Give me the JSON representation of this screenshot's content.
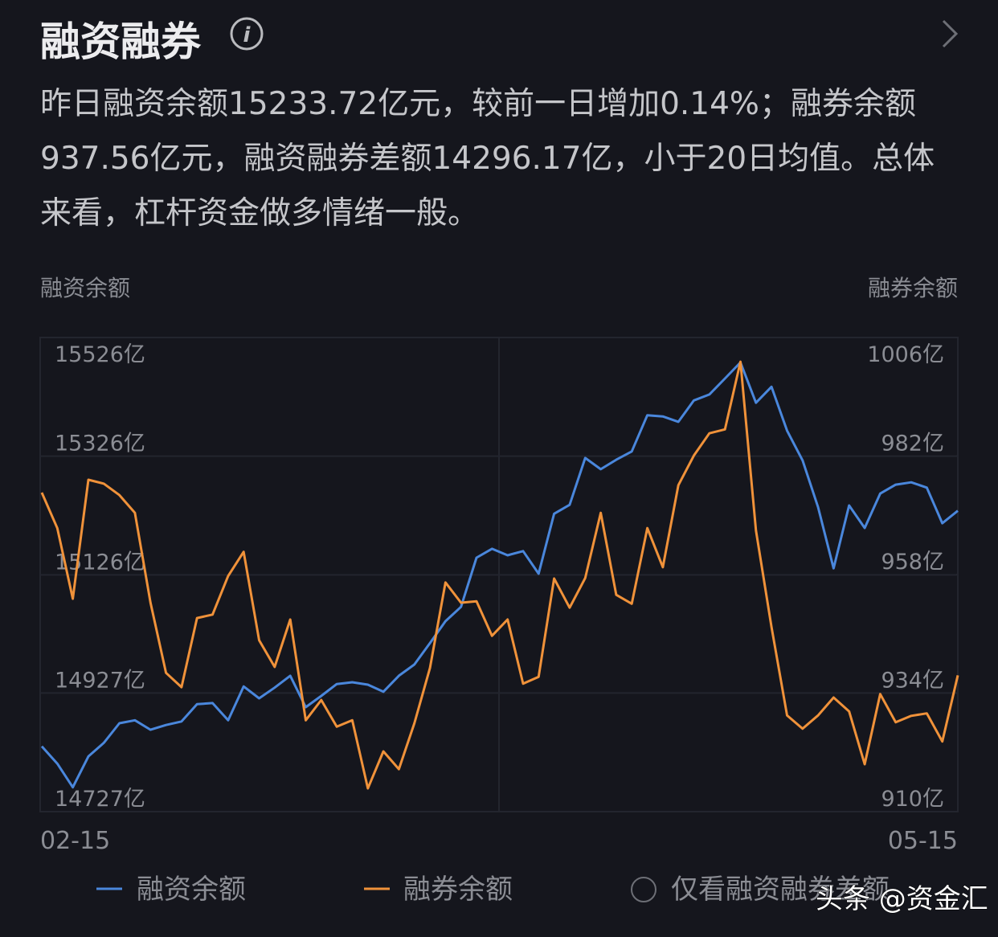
{
  "header": {
    "title": "融资融券"
  },
  "summary": "昨日融资余额15233.72亿元，较前一日增加0.14%；融券余额937.56亿元，融资融券差额14296.17亿，小于20日均值。总体来看，杠杆资金做多情绪一般。",
  "chart_data": {
    "type": "line",
    "y_label": "融资余额",
    "y2_label": "融券余额",
    "categories": [
      "02-15",
      null,
      null,
      null,
      null,
      null,
      null,
      null,
      null,
      null,
      null,
      null,
      null,
      null,
      null,
      null,
      null,
      null,
      null,
      null,
      null,
      null,
      null,
      null,
      null,
      null,
      null,
      null,
      null,
      null,
      null,
      null,
      null,
      null,
      null,
      null,
      null,
      null,
      null,
      null,
      null,
      null,
      null,
      null,
      null,
      null,
      null,
      null,
      null,
      null,
      null,
      null,
      null,
      null,
      null,
      null,
      null,
      null,
      null,
      "05-15"
    ],
    "series": [
      {
        "name": "融资余额",
        "color": "#4a87dc",
        "values": [
          14837,
          14808,
          14768,
          14820,
          14843,
          14876,
          14881,
          14865,
          14873,
          14879,
          14908,
          14910,
          14881,
          14938,
          14918,
          14936,
          14956,
          14903,
          14922,
          14942,
          14945,
          14941,
          14929,
          14956,
          14975,
          15011,
          15048,
          15072,
          15155,
          15170,
          15159,
          15166,
          15128,
          15229,
          15244,
          15323,
          15304,
          15320,
          15334,
          15395,
          15393,
          15384,
          15420,
          15430,
          15457,
          15484,
          15416,
          15443,
          15369,
          15319,
          15240,
          15137,
          15243,
          15205,
          15263,
          15278,
          15282,
          15273,
          15213,
          15234
        ]
      },
      {
        "name": "融券余额",
        "color": "#f0923a",
        "axis": "y2",
        "values": [
          974.6,
          967.4,
          953.1,
          977.2,
          976.4,
          974.1,
          970.5,
          952.3,
          938.1,
          935.2,
          949.2,
          949.9,
          957.7,
          962.6,
          944.7,
          939.3,
          948.9,
          928.5,
          932.6,
          927.2,
          928.5,
          914.7,
          922.2,
          918.6,
          927.9,
          939.1,
          956.4,
          952.3,
          952.6,
          945.6,
          948.9,
          935.9,
          937.3,
          957.2,
          951.3,
          957.3,
          970.5,
          953.9,
          952.1,
          967.4,
          959.5,
          976.1,
          982.1,
          986.6,
          987.4,
          1001.1,
          966.9,
          947.4,
          929.5,
          926.8,
          929.5,
          933.1,
          930.3,
          919.6,
          933.8,
          928.1,
          929.4,
          929.9,
          924.2,
          937.6
        ]
      }
    ],
    "ylim": [
      14727,
      15526
    ],
    "yticks": [
      {
        "value": 14727,
        "label": "14727亿"
      },
      {
        "value": 14927,
        "label": "14927亿"
      },
      {
        "value": 15126,
        "label": "15126亿"
      },
      {
        "value": 15326,
        "label": "15326亿"
      },
      {
        "value": 15526,
        "label": "15526亿"
      }
    ],
    "y2lim": [
      910,
      1006
    ],
    "y2ticks": [
      {
        "value": 910,
        "label": "910亿"
      },
      {
        "value": 934,
        "label": "934亿"
      },
      {
        "value": 958,
        "label": "958亿"
      },
      {
        "value": 982,
        "label": "982亿"
      },
      {
        "value": 1006,
        "label": "1006亿"
      }
    ],
    "grid": true
  },
  "legend_option": "仅看融资融券差额",
  "watermark": "头条 @资金汇"
}
